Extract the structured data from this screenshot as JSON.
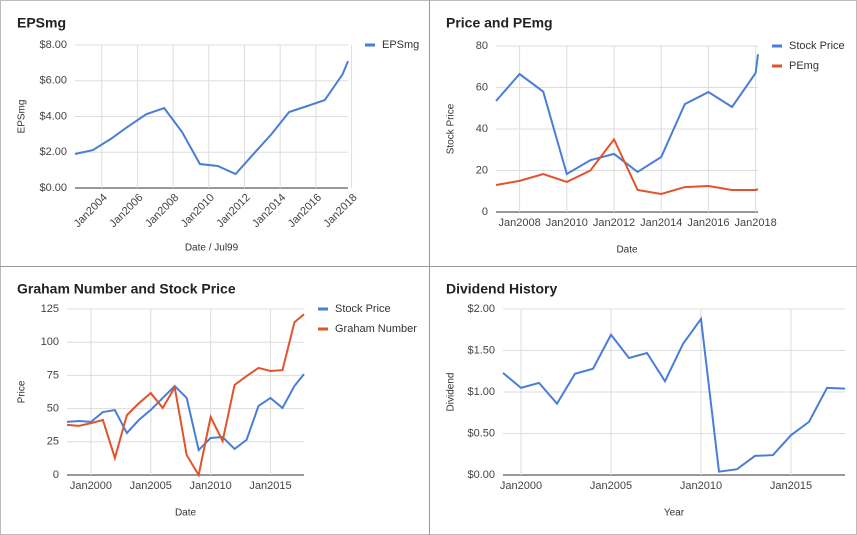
{
  "chart_data": [
    {
      "type": "line",
      "title": "EPSmg",
      "x_label": "Date / Jul99",
      "y_label": "EPSmg",
      "x": [
        2002.5,
        2003.5,
        2004.5,
        2005.5,
        2006.5,
        2007.5,
        2008.5,
        2009.5,
        2010.5,
        2011.5,
        2012.5,
        2013.5,
        2014.5,
        2015.5,
        2016.5,
        2017.5,
        2017.8
      ],
      "series": [
        {
          "name": "EPSmg",
          "color": "#4a7ed6",
          "values": [
            1.9,
            2.12,
            2.74,
            3.46,
            4.13,
            4.47,
            3.13,
            1.34,
            1.23,
            0.78,
            1.9,
            3.0,
            4.25,
            4.58,
            4.92,
            6.37,
            7.1
          ]
        }
      ],
      "xlim": [
        2002.5,
        2017.8
      ],
      "xticks": [
        {
          "value": 2004,
          "label": "Jan2004"
        },
        {
          "value": 2006,
          "label": "Jan2006"
        },
        {
          "value": 2008,
          "label": "Jan2008"
        },
        {
          "value": 2010,
          "label": "Jan2010"
        },
        {
          "value": 2012,
          "label": "Jan2012"
        },
        {
          "value": 2014,
          "label": "Jan2014"
        },
        {
          "value": 2016,
          "label": "Jan2016"
        },
        {
          "value": 2018,
          "label": "Jan2018"
        }
      ],
      "ylim": [
        0,
        8
      ],
      "yticks": [
        {
          "value": 0,
          "label": "$0.00"
        },
        {
          "value": 2,
          "label": "$2.00"
        },
        {
          "value": 4,
          "label": "$4.00"
        },
        {
          "value": 6,
          "label": "$6.00"
        },
        {
          "value": 8,
          "label": "$8.00"
        }
      ],
      "grid": true,
      "legend": "right"
    },
    {
      "type": "line",
      "title": "Price and PEmg",
      "x_label": "Date",
      "y_label": "Stock Price",
      "x": [
        2007,
        2008,
        2009,
        2010,
        2011,
        2012,
        2013,
        2014,
        2015,
        2016,
        2017,
        2018,
        2018.1
      ],
      "series": [
        {
          "name": "Stock Price",
          "color": "#4a7ed6",
          "values": [
            53.5,
            66.5,
            58,
            18.3,
            25,
            28,
            19.3,
            26.5,
            52,
            57.8,
            50.6,
            67,
            76
          ]
        },
        {
          "name": "PEmg",
          "color": "#e2532b",
          "values": [
            13,
            15,
            18.3,
            14.5,
            20,
            35,
            10.6,
            8.7,
            12,
            12.5,
            10.6,
            10.6,
            11
          ]
        }
      ],
      "xlim": [
        2007,
        2018.1
      ],
      "xticks": [
        {
          "value": 2008,
          "label": "Jan2008"
        },
        {
          "value": 2010,
          "label": "Jan2010"
        },
        {
          "value": 2012,
          "label": "Jan2012"
        },
        {
          "value": 2014,
          "label": "Jan2014"
        },
        {
          "value": 2016,
          "label": "Jan2016"
        },
        {
          "value": 2018,
          "label": "Jan2018"
        }
      ],
      "ylim": [
        0,
        80
      ],
      "yticks": [
        0,
        20,
        40,
        60,
        80
      ],
      "grid": true,
      "legend": "right"
    },
    {
      "type": "line",
      "title": "Graham Number and Stock Price",
      "x_label": "Date",
      "y_label": "Price",
      "x": [
        1998,
        1999,
        2000,
        2001,
        2002,
        2003,
        2004,
        2005,
        2006,
        2007,
        2008,
        2009,
        2010,
        2011,
        2012,
        2013,
        2014,
        2015,
        2016,
        2017,
        2017.8
      ],
      "series": [
        {
          "name": "Stock Price",
          "color": "#4a7ed6",
          "values": [
            40,
            40.7,
            40,
            47.4,
            48.9,
            31.6,
            41.4,
            49,
            58,
            67,
            58,
            18.8,
            27.9,
            28.6,
            19.6,
            26.4,
            52,
            58,
            50.5,
            67,
            76
          ]
        },
        {
          "name": "Graham Number",
          "color": "#e2532b",
          "values": [
            37.7,
            37,
            39,
            41.4,
            12.8,
            45,
            54,
            61.7,
            50.5,
            66,
            15,
            0,
            43.7,
            25.6,
            67.8,
            74.5,
            80.6,
            78.3,
            79,
            115,
            121
          ]
        }
      ],
      "xlim": [
        1998,
        2017.8
      ],
      "xticks": [
        {
          "value": 2000,
          "label": "Jan2000"
        },
        {
          "value": 2005,
          "label": "Jan2005"
        },
        {
          "value": 2010,
          "label": "Jan2010"
        },
        {
          "value": 2015,
          "label": "Jan2015"
        }
      ],
      "ylim": [
        0,
        125
      ],
      "yticks": [
        0,
        25,
        50,
        75,
        100,
        125
      ],
      "grid": true,
      "legend": "right"
    },
    {
      "type": "line",
      "title": "Dividend History",
      "x_label": "Year",
      "y_label": "Dividend",
      "x": [
        1999,
        2000,
        2001,
        2002,
        2003,
        2004,
        2005,
        2006,
        2007,
        2008,
        2009,
        2010,
        2011,
        2012,
        2013,
        2014,
        2015,
        2016,
        2017,
        2018
      ],
      "values": [
        1.23,
        1.05,
        1.11,
        0.86,
        1.22,
        1.28,
        1.69,
        1.41,
        1.47,
        1.13,
        1.58,
        1.88,
        0.04,
        0.07,
        0.23,
        0.24,
        0.48,
        0.64,
        1.05,
        1.04
      ],
      "color": "#4a7ed6",
      "xlim": [
        1999,
        2018
      ],
      "xticks": [
        {
          "value": 2000,
          "label": "Jan2000"
        },
        {
          "value": 2005,
          "label": "Jan2005"
        },
        {
          "value": 2010,
          "label": "Jan2010"
        },
        {
          "value": 2015,
          "label": "Jan2015"
        }
      ],
      "ylim": [
        0,
        2
      ],
      "yticks": [
        {
          "value": 0,
          "label": "$0.00"
        },
        {
          "value": 0.5,
          "label": "$0.50"
        },
        {
          "value": 1,
          "label": "$1.00"
        },
        {
          "value": 1.5,
          "label": "$1.50"
        },
        {
          "value": 2,
          "label": "$2.00"
        }
      ],
      "grid": true
    }
  ]
}
